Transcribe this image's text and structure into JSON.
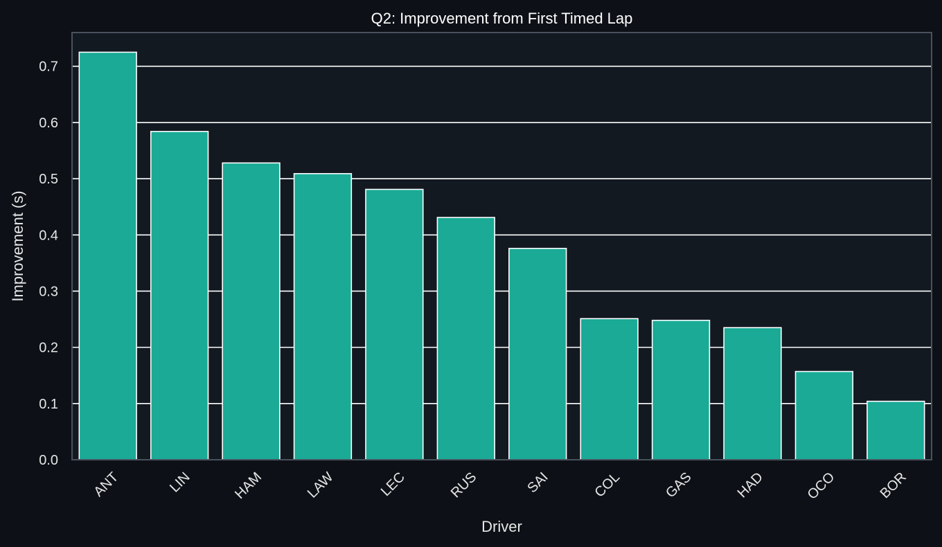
{
  "chart_data": {
    "type": "bar",
    "title": "Q2: Improvement from First Timed Lap",
    "xlabel": "Driver",
    "ylabel": "Improvement (s)",
    "categories": [
      "ANT",
      "LIN",
      "HAM",
      "LAW",
      "LEC",
      "RUS",
      "SAI",
      "COL",
      "GAS",
      "HAD",
      "OCO",
      "BOR"
    ],
    "values": [
      0.725,
      0.584,
      0.528,
      0.509,
      0.481,
      0.431,
      0.376,
      0.251,
      0.248,
      0.235,
      0.157,
      0.104
    ],
    "ylim": [
      0,
      0.76
    ],
    "yticks": [
      "0.0",
      "0.1",
      "0.2",
      "0.3",
      "0.4",
      "0.5",
      "0.6",
      "0.7"
    ],
    "grid": "horizontal",
    "legend": "none",
    "colors": {
      "page_background": "#0d1117",
      "plot_background": "#131921",
      "bar_fill": "#1aaa96",
      "bar_edge": "#ffffff",
      "grid": "#ffffff",
      "text": "#e6e6e6",
      "title": "#ffffff",
      "frame": "#4a525c"
    }
  }
}
